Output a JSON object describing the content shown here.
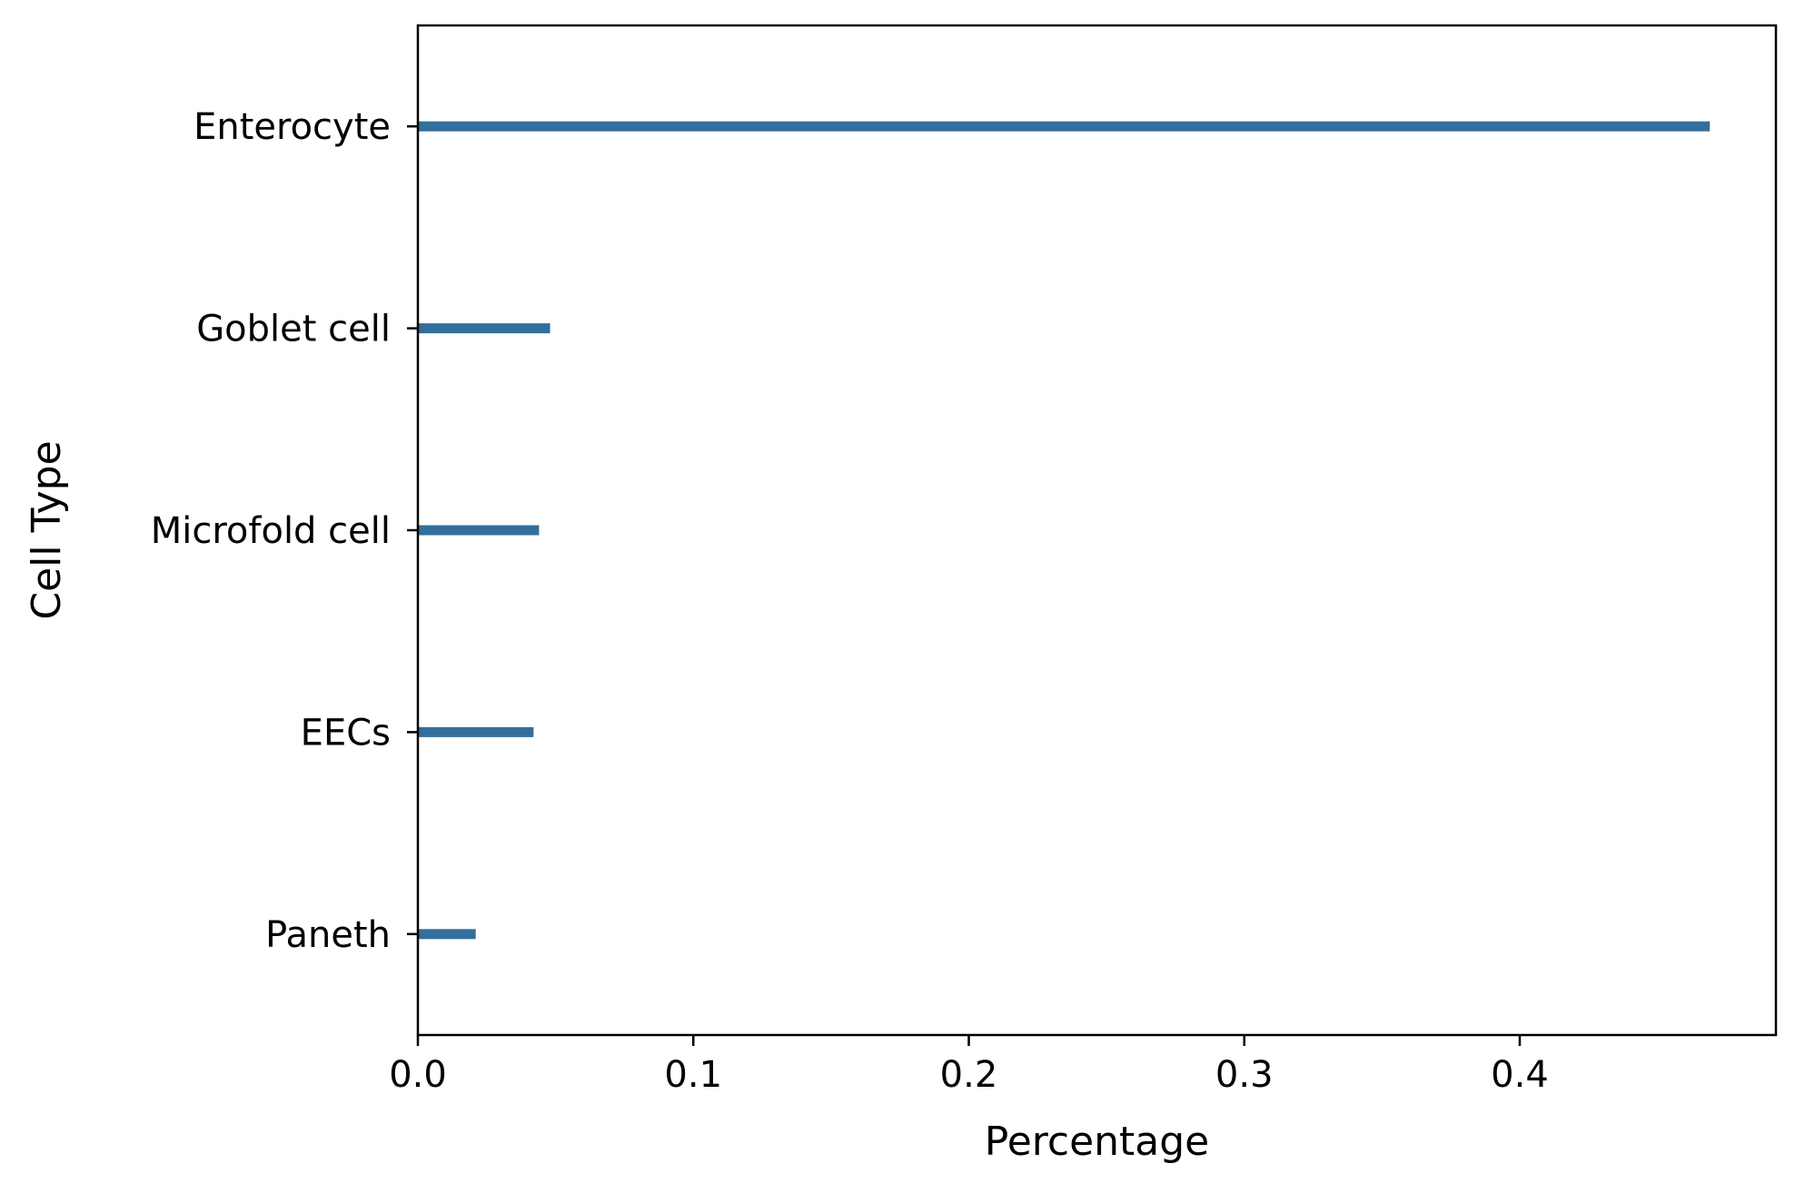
{
  "chart_data": {
    "type": "bar",
    "orientation": "horizontal",
    "categories": [
      "Enterocyte",
      "Goblet cell",
      "Microfold cell",
      "EECs",
      "Paneth"
    ],
    "values": [
      0.469,
      0.048,
      0.044,
      0.042,
      0.021
    ],
    "xlabel": "Percentage",
    "ylabel": "Cell Type",
    "xlim": [
      0.0,
      0.493
    ],
    "xticks": [
      0.0,
      0.1,
      0.2,
      0.3,
      0.4
    ],
    "xtick_labels": [
      "0.0",
      "0.1",
      "0.2",
      "0.3",
      "0.4"
    ],
    "grid": false,
    "bar_color": "#336f9b"
  }
}
